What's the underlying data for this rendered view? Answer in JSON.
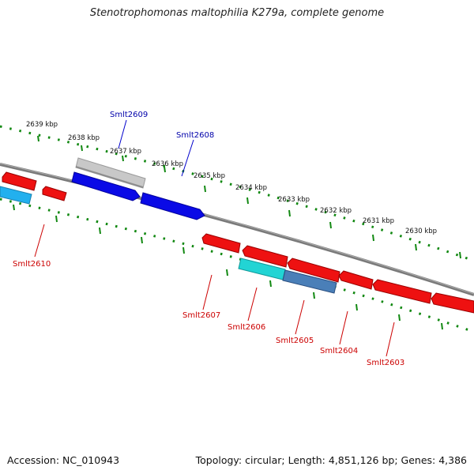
{
  "title": "Stenotrophomonas maltophilia K279a, complete genome",
  "footer": {
    "accession": "Accession: NC_010943",
    "summary": "Topology: circular; Length: 4,851,126 bp; Genes: 4,386"
  },
  "colors": {
    "forward_strand": "#0000ee",
    "reverse_strand": "#ee0000",
    "backbone": "#777777",
    "ruler_ticks": "#118811",
    "forward_label": "#0000aa",
    "reverse_label": "#cc0000",
    "gene_grey": "#bdbdbd",
    "gene_cyan": "#22cccc",
    "gene_steelblue": "#4477aa",
    "gene_lightblue": "#22aaee"
  },
  "ruler_labels": [
    "2639 kbp",
    "2638 kbp",
    "2637 kbp",
    "2636 kbp",
    "2635 kbp",
    "2634 kbp",
    "2633 kbp",
    "2632 kbp",
    "2631 kbp",
    "2630 kbp"
  ],
  "gene_labels": {
    "forward": [
      "Smlt2609",
      "Smlt2608"
    ],
    "reverse": [
      "Smlt2610",
      "Smlt2607",
      "Smlt2606",
      "Smlt2605",
      "Smlt2604",
      "Smlt2603"
    ]
  }
}
